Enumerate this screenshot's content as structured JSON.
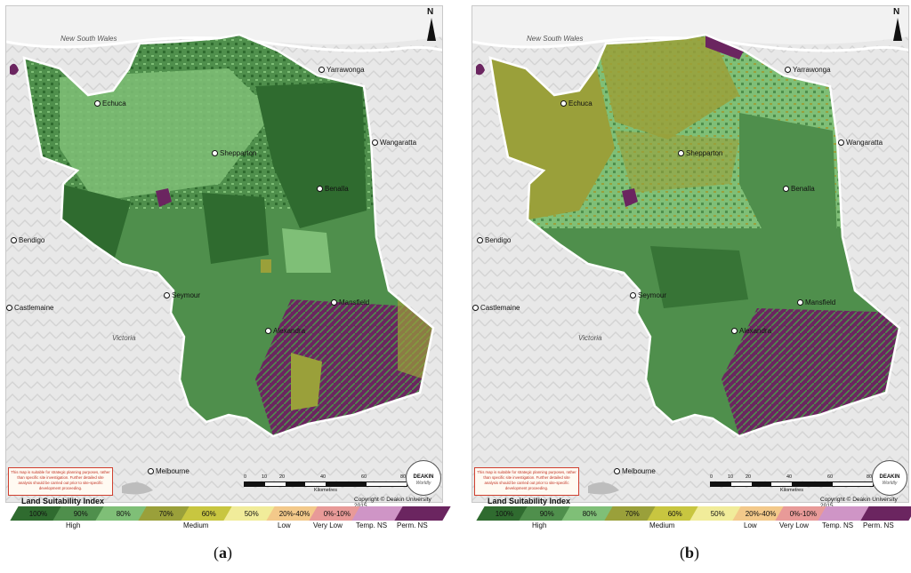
{
  "legend_title": "Land Suitability Index",
  "legend": [
    {
      "label": "100%",
      "color": "#2f6b2f"
    },
    {
      "label": "90%",
      "color": "#4f8f4c"
    },
    {
      "label": "80%",
      "color": "#7fbf77"
    },
    {
      "label": "70%",
      "color": "#9aa03a"
    },
    {
      "label": "60%",
      "color": "#c8c640"
    },
    {
      "label": "50%",
      "color": "#f1ec9a"
    },
    {
      "label": "20%-40%",
      "color": "#f3c98a"
    },
    {
      "label": "0%-10%",
      "color": "#e89a98"
    },
    {
      "label": "",
      "color": "#cf95c6"
    },
    {
      "label": "",
      "color": "#6b2560"
    }
  ],
  "legend_groups": [
    "High",
    "Medium",
    "Low",
    "Very Low",
    "Temp. NS",
    "Perm. NS"
  ],
  "place_labels": {
    "nsw": "New South Wales",
    "victoria": "Victoria",
    "echuca": "Echuca",
    "yarrawonga": "Yarrawonga",
    "shepparton": "Shepparton",
    "wangaratta": "Wangaratta",
    "benalla": "Benalla",
    "bendigo": "Bendigo",
    "seymour": "Seymour",
    "mansfield": "Mansfield",
    "castlemaine": "Castlemaine",
    "alexandra": "Alexandra",
    "melbourne": "Melbourne"
  },
  "north_label": "N",
  "disclaimer": "This map is suitable for strategic planning purposes, rather than specific site investigation. Further detailed site analysis should be carried out prior to site-specific development proceeding.",
  "logo_text": "DEAKIN",
  "logo_sub": "Worldly",
  "scale": {
    "ticks": [
      "0",
      "10",
      "20",
      "40",
      "60",
      "80"
    ],
    "unit": "Kilometres"
  },
  "copyright": "Copyright © Deakin University 2015",
  "captions": {
    "a": "a",
    "b": "b"
  }
}
